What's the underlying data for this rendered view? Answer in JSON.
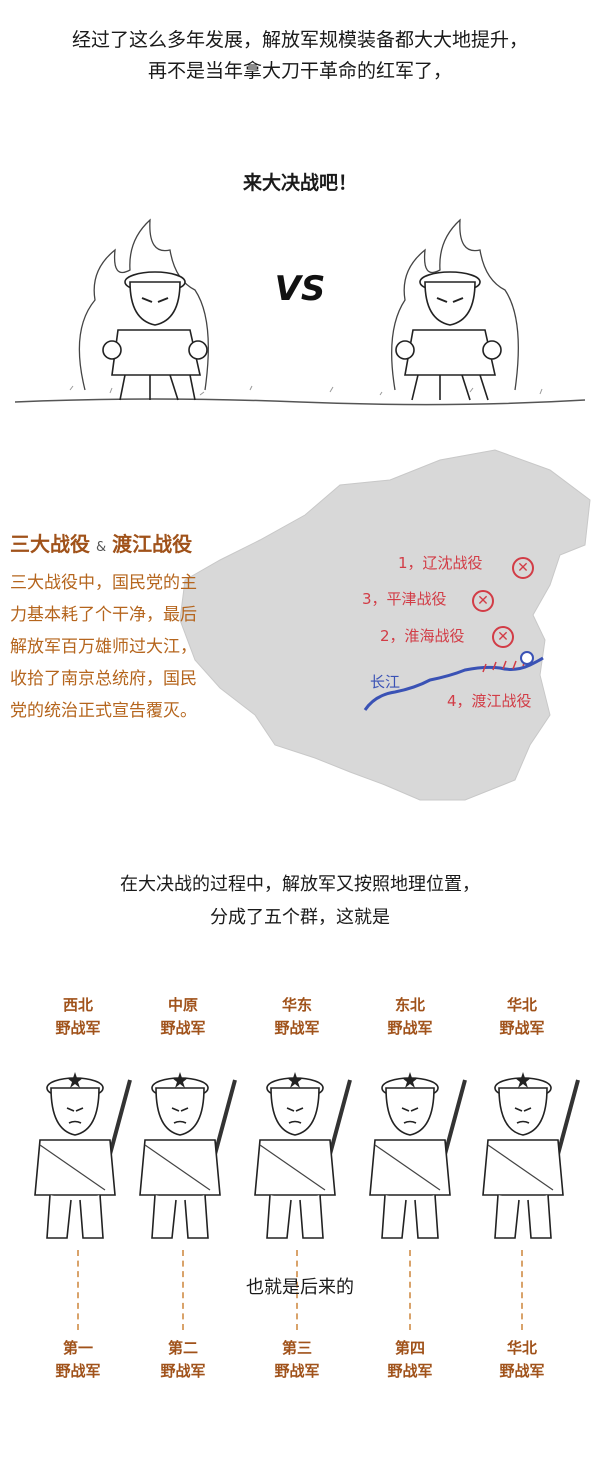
{
  "intro": {
    "line1": "经过了这么多年发展，解放军规模装备都大大地提升，",
    "line2": "再不是当年拿大刀干革命的红军了，"
  },
  "battle_call": "来大决战吧！",
  "versus": "VS",
  "campaigns": {
    "title_left": "三大战役",
    "ampersand": "&",
    "title_right": "渡江战役",
    "body": [
      "三大战役中，国民党的主",
      "力基本耗了个干净，最后",
      "解放军百万雄师过大江，",
      "收拾了南京总统府，国民",
      "党的统治正式宣告覆灭。"
    ]
  },
  "map": {
    "battles": [
      {
        "label": "1，辽沈战役"
      },
      {
        "label": "3，平津战役"
      },
      {
        "label": "2，淮海战役"
      },
      {
        "label": "4，渡江战役"
      }
    ],
    "river": "长江",
    "mark_color": "#d23c46",
    "river_color": "#3a52b5"
  },
  "grouping": {
    "line1": "在大决战的过程中，解放军又按照地理位置，",
    "line2": "分成了五个群，这就是"
  },
  "armies_before": [
    {
      "region": "西北",
      "suffix": "野战军"
    },
    {
      "region": "中原",
      "suffix": "野战军"
    },
    {
      "region": "华东",
      "suffix": "野战军"
    },
    {
      "region": "东北",
      "suffix": "野战军"
    },
    {
      "region": "华北",
      "suffix": "野战军"
    }
  ],
  "later_text": "也就是后来的",
  "armies_after": [
    {
      "region": "第一",
      "suffix": "野战军"
    },
    {
      "region": "第二",
      "suffix": "野战军"
    },
    {
      "region": "第三",
      "suffix": "野战军"
    },
    {
      "region": "第四",
      "suffix": "野战军"
    },
    {
      "region": "华北",
      "suffix": "野战军"
    }
  ],
  "accent_color": "#a0521a"
}
